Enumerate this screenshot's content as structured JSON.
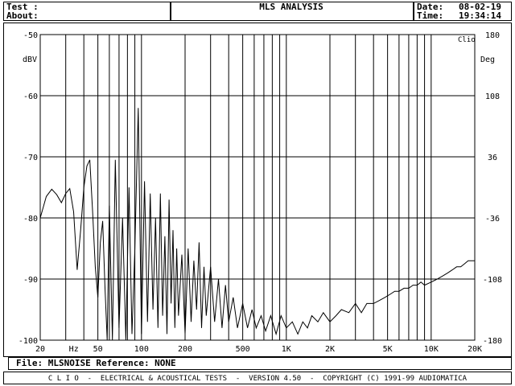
{
  "header": {
    "test_label": "Test :",
    "about_label": "About:",
    "title": "MLS ANALYSIS",
    "date_label": "Date:",
    "date_value": "08-02-19",
    "time_label": "Time:",
    "time_value": "19:34:14"
  },
  "file_bar": {
    "label": "File: MLSNOISE Reference: NONE"
  },
  "footer": {
    "text": "C L I O  -  ELECTRICAL & ACOUSTICAL TESTS  -  VERSION 4.50  -  COPYRIGHT (C) 1991-99 AUDIOMATICA"
  },
  "chart_data": {
    "type": "line",
    "title": "MLS ANALYSIS",
    "badge": "Clio",
    "xlabel": "Hz",
    "ylabel_left": "dBV",
    "ylabel_right": "Deg",
    "x_scale": "log",
    "xlim": [
      20,
      20000
    ],
    "ylim": [
      -100,
      -50
    ],
    "y2lim": [
      -180,
      180
    ],
    "grid": true,
    "x_ticks": [
      {
        "v": 20,
        "label": "20"
      },
      {
        "v": 50,
        "label": "50"
      },
      {
        "v": 100,
        "label": "100"
      },
      {
        "v": 200,
        "label": "200"
      },
      {
        "v": 500,
        "label": "500"
      },
      {
        "v": 1000,
        "label": "1K"
      },
      {
        "v": 2000,
        "label": "2K"
      },
      {
        "v": 5000,
        "label": "5K"
      },
      {
        "v": 10000,
        "label": "10K"
      },
      {
        "v": 20000,
        "label": "20K"
      }
    ],
    "x_unit_tick": {
      "v": 30,
      "label": "Hz"
    },
    "y_ticks": [
      -50,
      -60,
      -70,
      -80,
      -90,
      -100
    ],
    "y2_ticks": [
      180,
      108,
      36,
      -36,
      -108,
      -180
    ],
    "series": [
      {
        "x": [
          20,
          22,
          24,
          26,
          28,
          30,
          32,
          34,
          36,
          38,
          40,
          42,
          44,
          46,
          48,
          50,
          52,
          54,
          56,
          58,
          60,
          63,
          66,
          70,
          74,
          78,
          82,
          86,
          90,
          95,
          100,
          105,
          110,
          115,
          120,
          125,
          130,
          135,
          140,
          145,
          150,
          155,
          160,
          165,
          170,
          175,
          180,
          190,
          200,
          210,
          220,
          230,
          240,
          250,
          260,
          270,
          280,
          300,
          320,
          340,
          360,
          380,
          400,
          430,
          460,
          500,
          540,
          580,
          620,
          670,
          720,
          780,
          850,
          920,
          1000,
          1100,
          1200,
          1300,
          1400,
          1500,
          1650,
          1800,
          2000,
          2200,
          2400,
          2700,
          3000,
          3300,
          3600,
          4000,
          4400,
          4800,
          5200,
          5600,
          6000,
          6500,
          7000,
          7500,
          8000,
          8500,
          9000,
          10000,
          11000,
          12000,
          13000,
          14000,
          15000,
          16000,
          17000,
          18000,
          19000,
          20000
        ],
        "y": [
          -80,
          -76.5,
          -75.3,
          -76.2,
          -77.5,
          -76,
          -75.2,
          -79,
          -88.5,
          -82,
          -75,
          -71.5,
          -70.5,
          -79,
          -88,
          -93,
          -84,
          -80.5,
          -91.5,
          -100,
          -78,
          -100,
          -70.5,
          -98,
          -80,
          -100,
          -75,
          -99,
          -85,
          -62,
          -99,
          -74,
          -97,
          -76,
          -95,
          -80,
          -98,
          -76,
          -96,
          -83,
          -99,
          -77,
          -94,
          -82,
          -98,
          -85,
          -96,
          -86,
          -99,
          -85,
          -97,
          -87,
          -95,
          -84,
          -98,
          -88,
          -96,
          -88,
          -97,
          -90,
          -98,
          -91,
          -97,
          -93,
          -98,
          -94,
          -98,
          -95,
          -98,
          -96,
          -98.5,
          -96,
          -99,
          -96,
          -98,
          -97,
          -99,
          -97,
          -98,
          -96,
          -97,
          -95.5,
          -97,
          -96,
          -95,
          -95.5,
          -94,
          -95.5,
          -94,
          -94,
          -93.5,
          -93,
          -92.5,
          -92,
          -92,
          -91.5,
          -91.5,
          -91,
          -91,
          -90.5,
          -91,
          -90.5,
          -90,
          -89.5,
          -89,
          -88.5,
          -88,
          -88,
          -87.5,
          -87,
          -87,
          -87
        ]
      }
    ]
  }
}
